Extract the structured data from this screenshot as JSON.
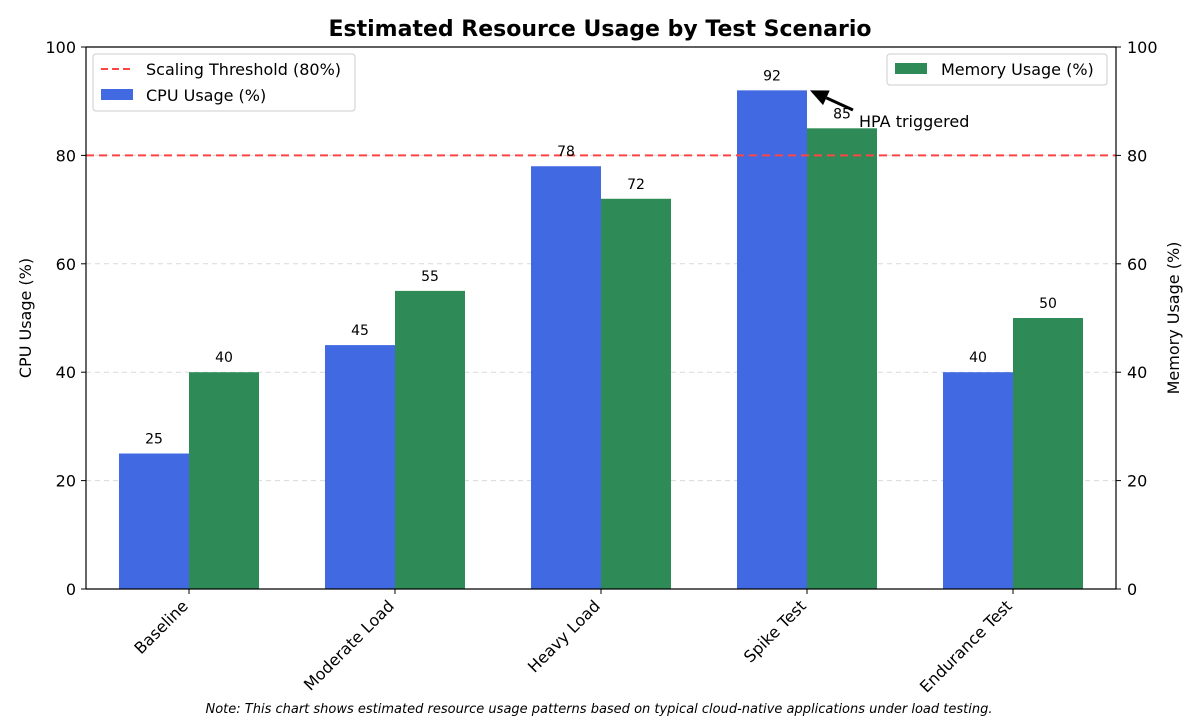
{
  "chart_data": {
    "type": "bar",
    "title": "Estimated Resource Usage by Test Scenario",
    "categories": [
      "Baseline",
      "Moderate Load",
      "Heavy Load",
      "Spike Test",
      "Endurance Test"
    ],
    "series": [
      {
        "name": "CPU Usage (%)",
        "axis": "left",
        "color": "#4169E1",
        "values": [
          25,
          45,
          78,
          92,
          40
        ]
      },
      {
        "name": "Memory Usage (%)",
        "axis": "right",
        "color": "#2E8B57",
        "values": [
          40,
          55,
          72,
          85,
          50
        ]
      }
    ],
    "ylabel": "CPU Usage (%)",
    "ylabel_right": "Memory Usage (%)",
    "ylim": [
      0,
      100
    ],
    "ylim_right": [
      0,
      100
    ],
    "yticks": [
      0,
      20,
      40,
      60,
      80,
      100
    ],
    "grid": "y dashed",
    "threshold": {
      "label": "Scaling Threshold (80%)",
      "value": 80,
      "color": "#FF4444",
      "style": "dashed"
    },
    "legend_left": "upper-left",
    "legend_right": "upper-right",
    "annotation": {
      "text": "HPA triggered",
      "category": "Spike Test",
      "series": "CPU Usage (%)",
      "value": 92
    }
  },
  "footnote": "Note: This chart shows estimated resource usage patterns based on typical cloud-native applications under load testing."
}
